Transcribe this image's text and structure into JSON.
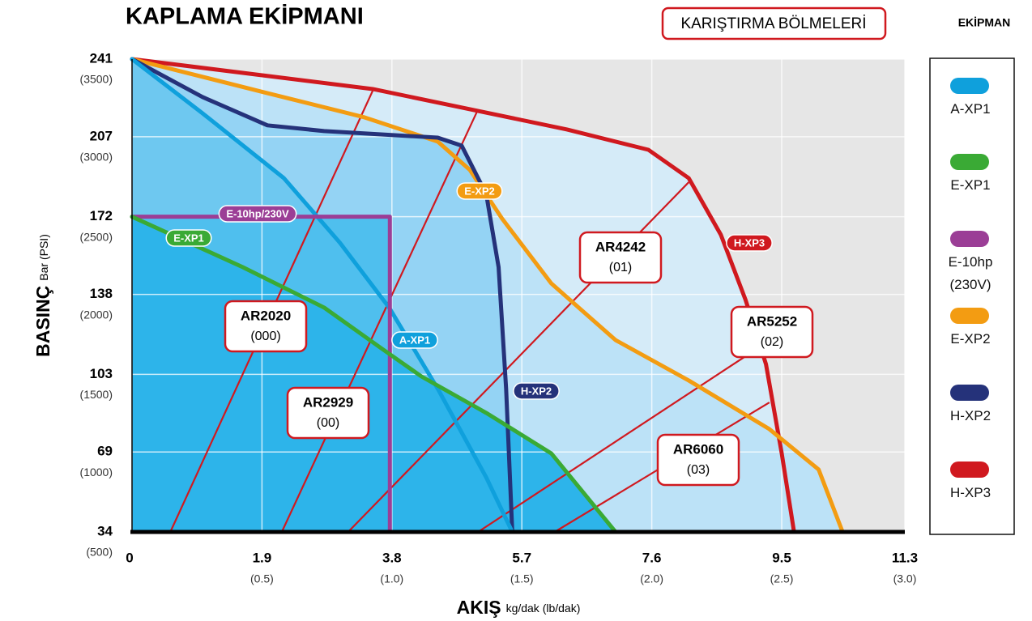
{
  "chart_data": {
    "type": "line",
    "title": "KAPLAMA EKİPMANI",
    "header_box": "KARIŞTIRMA BÖLMELERİ",
    "legend_title": "EKİPMAN",
    "x_label": "AKIŞ",
    "x_label_unit": "kg/dak (lb/dak)",
    "y_label": "BASINÇ",
    "y_label_unit": "Bar (PSI)",
    "xlim": [
      0,
      11.3
    ],
    "ylim": [
      34,
      241
    ],
    "xticks": [
      0,
      1.9,
      3.8,
      5.7,
      7.6,
      9.5,
      11.3
    ],
    "x2ticks": [
      {
        "value": 1.9,
        "label": "(0.5)"
      },
      {
        "value": 3.8,
        "label": "(1.0)"
      },
      {
        "value": 5.7,
        "label": "(1.5)"
      },
      {
        "value": 7.6,
        "label": "(2.0)"
      },
      {
        "value": 9.5,
        "label": "(2.5)"
      },
      {
        "value": 11.3,
        "label": "(3.0)"
      }
    ],
    "yticks": [
      241,
      207,
      172,
      138,
      103,
      69,
      34
    ],
    "y2ticks": [
      {
        "value": 241,
        "label": "(3500)"
      },
      {
        "value": 207,
        "label": "(3000)"
      },
      {
        "value": 172,
        "label": "(2500)"
      },
      {
        "value": 138,
        "label": "(2000)"
      },
      {
        "value": 103,
        "label": "(1500)"
      },
      {
        "value": 69,
        "label": "(1000)"
      },
      {
        "value": 34,
        "label": "(500)"
      }
    ],
    "grid": true,
    "series": [
      {
        "name": "A-XP1",
        "tag": "A-XP1",
        "color": "#0fa0dc",
        "fill": "#6ec8f0",
        "x": [
          0,
          1.03,
          2.22,
          3.04,
          3.76,
          4.47,
          5.18,
          5.56
        ],
        "y": [
          241,
          217.3,
          188.9,
          160.6,
          132.2,
          96.7,
          57.8,
          34
        ]
      },
      {
        "name": "E-XP1",
        "tag": "E-XP1",
        "color": "#3aaa35",
        "fill": "#2db4ea",
        "x": [
          0,
          1.62,
          2.81,
          3.64,
          4.23,
          5.18,
          6.13,
          7.07
        ],
        "y": [
          172,
          149.9,
          132.2,
          114.5,
          102.1,
          86.1,
          68.4,
          34
        ]
      },
      {
        "name": "E-10hp (230V)",
        "tag": "E-10hp/230V",
        "color": "#9b3e96",
        "fill": "#4fbfee",
        "x": [
          0,
          3.77,
          3.77
        ],
        "y": [
          172,
          172,
          34
        ]
      },
      {
        "name": "E-XP2",
        "tag": "E-XP2",
        "color": "#f39c12",
        "fill": "#bce2f7",
        "x": [
          0,
          1.98,
          3.4,
          4.47,
          4.94,
          5.41,
          6.13,
          7.07,
          8.14,
          9.32,
          10.04,
          10.39
        ],
        "y": [
          241,
          226.1,
          215.5,
          204.9,
          192.5,
          171.2,
          142.8,
          118,
          100.3,
          79,
          61.3,
          34
        ]
      },
      {
        "name": "H-XP2",
        "tag": "H-XP2",
        "color": "#25327a",
        "fill": "#94d3f4",
        "x": [
          0,
          1.03,
          1.98,
          2.81,
          4.47,
          4.82,
          5.18,
          5.36,
          5.47,
          5.56
        ],
        "y": [
          241,
          224.4,
          212,
          209.5,
          206.6,
          203.1,
          181.8,
          149.9,
          96.7,
          34
        ]
      },
      {
        "name": "H-XP3",
        "tag": "H-XP3",
        "color": "#d0191f",
        "fill": "#d5ebf8",
        "x": [
          0,
          3.52,
          6.36,
          7.55,
          8.14,
          8.61,
          8.97,
          9.27,
          9.5,
          9.68
        ],
        "y": [
          241,
          227.9,
          210.2,
          201.3,
          188.9,
          164.1,
          135.7,
          107.4,
          68.4,
          34
        ]
      }
    ],
    "chamber_color": "#d0191f",
    "chambers": [
      {
        "name": "AR2020",
        "code": "(000)",
        "x": [
          0.56,
          3.52
        ],
        "y": [
          34,
          227.2
        ]
      },
      {
        "name": "AR2929",
        "code": "(00)",
        "x": [
          2.19,
          5.06
        ],
        "y": [
          34,
          219
        ]
      },
      {
        "name": "AR4242",
        "code": "(01)",
        "x": [
          3.16,
          8.14
        ],
        "y": [
          34,
          187.1
        ]
      },
      {
        "name": "AR5252",
        "code": "(02)",
        "x": [
          5.06,
          8.97
        ],
        "y": [
          34,
          110.9
        ]
      },
      {
        "name": "AR6060",
        "code": "(03)",
        "x": [
          6.18,
          9.32
        ],
        "y": [
          34,
          90.7
        ]
      }
    ]
  }
}
